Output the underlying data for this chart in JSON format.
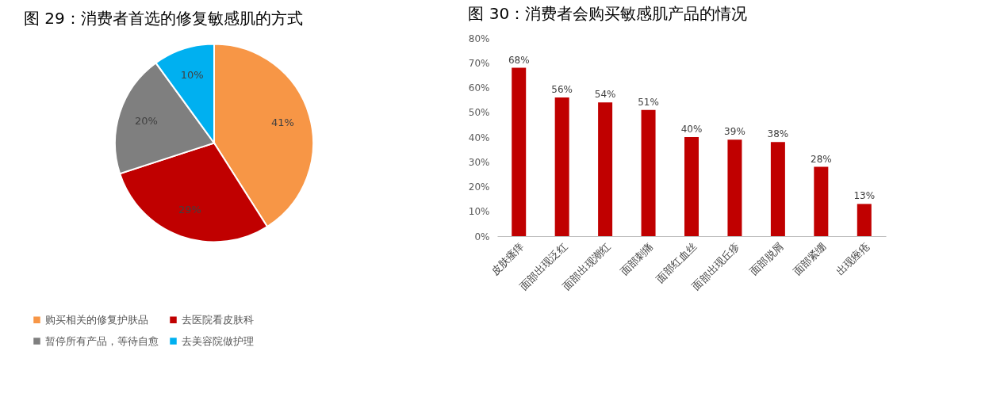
{
  "chart_data": [
    {
      "type": "pie",
      "title": "图 29：消费者首选的修复敏感肌的方式",
      "categories": [
        "购买相关的修复护肤品",
        "去医院看皮肤科",
        "暂停所有产品，等待自愈",
        "去美容院做护理"
      ],
      "values": [
        41,
        29,
        20,
        10
      ],
      "colors": [
        "#f79646",
        "#c00000",
        "#7f7f7f",
        "#00b0f0"
      ],
      "value_labels": [
        "41%",
        "29%",
        "20%",
        "10%"
      ],
      "legend": "bottom"
    },
    {
      "type": "bar",
      "title": "图 30：消费者会购买敏感肌产品的情况",
      "categories": [
        "皮肤瘙痒",
        "面部出现泛红",
        "面部出现潮红",
        "面部刺痛",
        "面部红血丝",
        "面部出现丘疹",
        "面部脱屑",
        "面部紧绷",
        "出现痤疮"
      ],
      "values": [
        68,
        56,
        54,
        51,
        40,
        39,
        38,
        28,
        13
      ],
      "color": "#c00000",
      "value_labels": [
        "68%",
        "56%",
        "54%",
        "51%",
        "40%",
        "39%",
        "38%",
        "28%",
        "13%"
      ],
      "ylim": [
        0,
        80
      ],
      "yticks": [
        {
          "value": 0,
          "label": "0%"
        },
        {
          "value": 10,
          "label": "10%"
        },
        {
          "value": 20,
          "label": "20%"
        },
        {
          "value": 30,
          "label": "30%"
        },
        {
          "value": 40,
          "label": "40%"
        },
        {
          "value": 50,
          "label": "50%"
        },
        {
          "value": 60,
          "label": "60%"
        },
        {
          "value": 70,
          "label": "70%"
        },
        {
          "value": 80,
          "label": "80%"
        }
      ],
      "grid": false
    }
  ]
}
